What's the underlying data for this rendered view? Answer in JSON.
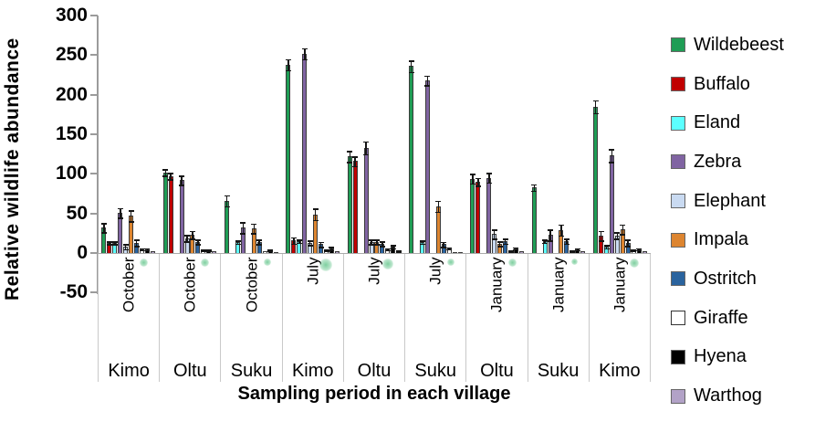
{
  "chart_data": {
    "type": "bar",
    "title": "",
    "ylabel": "Relative wildlife abundance",
    "xlabel": "Sampling period in each village",
    "ylim": [
      -50,
      300
    ],
    "yticks": [
      300,
      250,
      200,
      150,
      100,
      50,
      0,
      -50
    ],
    "grid": false,
    "legend_position": "right",
    "error_bars": true,
    "series": [
      {
        "name": "Wildebeest",
        "color": "#1F9D55"
      },
      {
        "name": "Buffalo",
        "color": "#C00000"
      },
      {
        "name": "Eland",
        "color": "#5CFFFF"
      },
      {
        "name": "Zebra",
        "color": "#8064A2"
      },
      {
        "name": "Elephant",
        "color": "#C9DAF1"
      },
      {
        "name": "Impala",
        "color": "#DD8530"
      },
      {
        "name": "Ostritch",
        "color": "#2A639E"
      },
      {
        "name": "Giraffe",
        "color": "#FFFFFF"
      },
      {
        "name": "Hyena",
        "color": "#000000"
      },
      {
        "name": "Warthog",
        "color": "#B2A2C7"
      }
    ],
    "groups": [
      {
        "month": "October",
        "village": "Kimo",
        "values": [
          32,
          13,
          13,
          51,
          8,
          47,
          13,
          5,
          5,
          2
        ],
        "errors": [
          6,
          2,
          2,
          6,
          3,
          7,
          4,
          1,
          1,
          0
        ],
        "dot_size": 9
      },
      {
        "month": "October",
        "village": "Oltu",
        "values": [
          102,
          97,
          0,
          92,
          19,
          23,
          14,
          4,
          4,
          2
        ],
        "errors": [
          4,
          4,
          0,
          6,
          4,
          5,
          3,
          1,
          1,
          0
        ],
        "dot_size": 9
      },
      {
        "month": "October",
        "village": "Suku",
        "values": [
          66,
          0,
          14,
          32,
          0,
          31,
          14,
          2,
          4,
          1
        ],
        "errors": [
          7,
          0,
          2,
          7,
          0,
          6,
          3,
          0,
          1,
          0
        ],
        "dot_size": 8
      },
      {
        "month": "July",
        "village": "Kimo",
        "values": [
          238,
          16,
          15,
          252,
          13,
          49,
          11,
          4,
          6,
          2
        ],
        "errors": [
          7,
          4,
          2,
          7,
          3,
          7,
          3,
          1,
          2,
          0
        ],
        "dot_size": 14
      },
      {
        "month": "July",
        "village": "Oltu",
        "values": [
          122,
          116,
          0,
          133,
          14,
          14,
          12,
          5,
          8,
          3
        ],
        "errors": [
          7,
          6,
          0,
          8,
          3,
          3,
          3,
          1,
          2,
          1
        ],
        "dot_size": 12
      },
      {
        "month": "July",
        "village": "Suku",
        "values": [
          236,
          0,
          14,
          218,
          0,
          59,
          11,
          6,
          1,
          1
        ],
        "errors": [
          7,
          0,
          2,
          6,
          0,
          7,
          3,
          1,
          0,
          0
        ],
        "dot_size": 8
      },
      {
        "month": "January",
        "village": "Oltu",
        "values": [
          94,
          90,
          0,
          95,
          24,
          12,
          15,
          3,
          6,
          2
        ],
        "errors": [
          6,
          5,
          0,
          6,
          6,
          3,
          3,
          1,
          1,
          0
        ],
        "dot_size": 9
      },
      {
        "month": "January",
        "village": "Suku",
        "values": [
          83,
          0,
          15,
          23,
          0,
          29,
          15,
          3,
          5,
          2
        ],
        "errors": [
          4,
          0,
          2,
          7,
          0,
          7,
          3,
          1,
          1,
          0
        ],
        "dot_size": 7
      },
      {
        "month": "January",
        "village": "Kimo",
        "values": [
          185,
          22,
          8,
          123,
          22,
          30,
          13,
          4,
          5,
          2
        ],
        "errors": [
          8,
          6,
          2,
          8,
          4,
          6,
          4,
          1,
          1,
          0
        ],
        "dot_size": 10
      }
    ],
    "dot_color": "#7ECF9F"
  },
  "colors": {
    "axis_line": "#9B9B9B",
    "cell_border": "#C9C9C9",
    "zero_line": "#ABABAB",
    "text": "#000000"
  }
}
